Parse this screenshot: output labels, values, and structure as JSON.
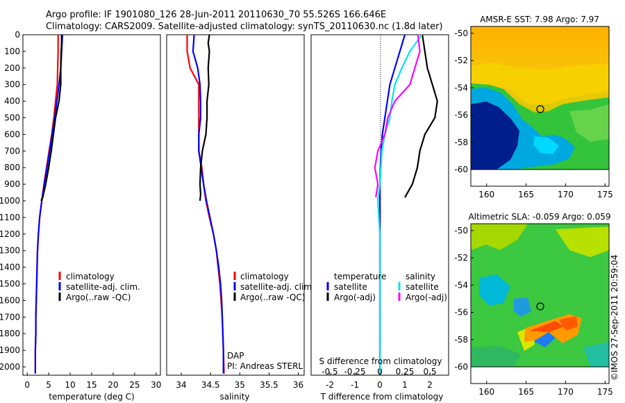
{
  "header": {
    "line1": "Argo profile: IF 1901080_126 28-Jun-2011 20110630_70 55.526S 166.646E",
    "line2": "Climatology: CARS2009. Satellite-adjusted climatology: synTS_20110630.nc (1.8d later)"
  },
  "colors": {
    "climatology": "#ff0000",
    "satellite": "#0000ff",
    "argo": "#000000",
    "salinity_sat": "#00e5ee",
    "salinity_argo": "#ff00ff"
  },
  "depth_ticks": [
    "0",
    "100",
    "200",
    "300",
    "400",
    "500",
    "600",
    "700",
    "800",
    "900",
    "1000",
    "1100",
    "1200",
    "1300",
    "1400",
    "1500",
    "1600",
    "1700",
    "1800",
    "1900",
    "2000"
  ],
  "chart_data": [
    {
      "type": "line",
      "xlabel": "temperature (deg C)",
      "xlim": [
        -1,
        31
      ],
      "ylim": [
        2050,
        0
      ],
      "xticks": [
        "0",
        "5",
        "10",
        "15",
        "20",
        "25",
        "30"
      ],
      "legend": [
        "climatology",
        "satellite-adj. clim.",
        "Argo(..raw -QC)"
      ],
      "series": [
        {
          "name": "climatology",
          "points": [
            [
              7.2,
              0
            ],
            [
              7.2,
              100
            ],
            [
              7.1,
              200
            ],
            [
              7.0,
              300
            ],
            [
              6.6,
              400
            ],
            [
              6.2,
              500
            ],
            [
              5.7,
              600
            ],
            [
              5.1,
              700
            ],
            [
              4.5,
              800
            ],
            [
              3.9,
              900
            ],
            [
              3.4,
              1000
            ],
            [
              2.9,
              1100
            ],
            [
              2.6,
              1200
            ],
            [
              2.4,
              1300
            ],
            [
              2.3,
              1400
            ],
            [
              2.2,
              1500
            ],
            [
              2.1,
              1600
            ],
            [
              2.0,
              1700
            ],
            [
              2.0,
              1800
            ],
            [
              1.9,
              1900
            ],
            [
              1.9,
              2040
            ]
          ]
        },
        {
          "name": "satellite-adj. clim.",
          "points": [
            [
              8.2,
              0
            ],
            [
              8.0,
              100
            ],
            [
              7.8,
              200
            ],
            [
              7.4,
              300
            ],
            [
              6.9,
              400
            ],
            [
              6.4,
              500
            ],
            [
              5.8,
              600
            ],
            [
              5.2,
              700
            ],
            [
              4.6,
              800
            ],
            [
              4.0,
              900
            ],
            [
              3.4,
              1000
            ],
            [
              2.9,
              1100
            ],
            [
              2.6,
              1200
            ],
            [
              2.4,
              1300
            ],
            [
              2.3,
              1400
            ],
            [
              2.2,
              1500
            ],
            [
              2.1,
              1600
            ],
            [
              2.0,
              1700
            ],
            [
              2.0,
              1800
            ],
            [
              1.9,
              1900
            ],
            [
              1.9,
              2040
            ]
          ]
        },
        {
          "name": "Argo(..raw -QC)",
          "points": [
            [
              8.0,
              0
            ],
            [
              8.0,
              50
            ],
            [
              7.9,
              100
            ],
            [
              7.8,
              200
            ],
            [
              7.8,
              300
            ],
            [
              7.6,
              350
            ],
            [
              7.4,
              400
            ],
            [
              7.0,
              450
            ],
            [
              6.6,
              500
            ],
            [
              6.1,
              600
            ],
            [
              5.6,
              700
            ],
            [
              5.0,
              800
            ],
            [
              4.3,
              900
            ],
            [
              3.6,
              980
            ],
            [
              3.2,
              1000
            ]
          ]
        }
      ]
    },
    {
      "type": "line",
      "xlabel": "salinity",
      "xlim": [
        33.75,
        36.1
      ],
      "ylim": [
        2050,
        0
      ],
      "xticks": [
        "34",
        "34.5",
        "35",
        "35.5",
        "36"
      ],
      "legend": [
        "climatology",
        "satellite-adj. clim.",
        "Argo(..raw -QC)"
      ],
      "annotations": [
        "DAP",
        "PI: Andreas STERL"
      ],
      "series": [
        {
          "name": "climatology",
          "points": [
            [
              34.1,
              0
            ],
            [
              34.1,
              100
            ],
            [
              34.15,
              200
            ],
            [
              34.3,
              300
            ],
            [
              34.3,
              400
            ],
            [
              34.3,
              500
            ],
            [
              34.3,
              600
            ],
            [
              34.3,
              700
            ],
            [
              34.35,
              800
            ],
            [
              34.38,
              900
            ],
            [
              34.42,
              1000
            ],
            [
              34.48,
              1100
            ],
            [
              34.55,
              1200
            ],
            [
              34.6,
              1300
            ],
            [
              34.63,
              1400
            ],
            [
              34.66,
              1500
            ],
            [
              34.68,
              1600
            ],
            [
              34.7,
              1700
            ],
            [
              34.71,
              1800
            ],
            [
              34.72,
              1900
            ],
            [
              34.73,
              2040
            ]
          ]
        },
        {
          "name": "satellite-adj. clim.",
          "points": [
            [
              34.22,
              0
            ],
            [
              34.2,
              100
            ],
            [
              34.28,
              200
            ],
            [
              34.32,
              300
            ],
            [
              34.33,
              400
            ],
            [
              34.33,
              500
            ],
            [
              34.3,
              600
            ],
            [
              34.3,
              700
            ],
            [
              34.34,
              800
            ],
            [
              34.38,
              900
            ],
            [
              34.43,
              1000
            ],
            [
              34.49,
              1100
            ],
            [
              34.55,
              1200
            ],
            [
              34.6,
              1300
            ],
            [
              34.64,
              1400
            ],
            [
              34.67,
              1500
            ],
            [
              34.69,
              1600
            ],
            [
              34.7,
              1700
            ],
            [
              34.71,
              1800
            ],
            [
              34.72,
              1900
            ],
            [
              34.72,
              2040
            ]
          ]
        },
        {
          "name": "Argo(..raw -QC)",
          "points": [
            [
              34.48,
              0
            ],
            [
              34.46,
              50
            ],
            [
              34.48,
              100
            ],
            [
              34.46,
              200
            ],
            [
              34.47,
              300
            ],
            [
              34.44,
              400
            ],
            [
              34.44,
              500
            ],
            [
              34.42,
              600
            ],
            [
              34.36,
              700
            ],
            [
              34.33,
              800
            ],
            [
              34.32,
              900
            ],
            [
              34.33,
              960
            ],
            [
              34.32,
              1000
            ]
          ]
        }
      ]
    },
    {
      "type": "line",
      "xlabel": "T difference from climatology",
      "xlabel2": "S difference from climatology",
      "xlim": [
        -2.75,
        2.75
      ],
      "ylim": [
        2050,
        0
      ],
      "xticks": [
        "-2",
        "-1",
        "0",
        "1",
        "2"
      ],
      "xticks2": [
        "-0.5",
        "-0.25",
        "0",
        "0.25",
        "0.5"
      ],
      "legend_temperature": [
        "temperature",
        "satellite",
        "Argo(-adj)"
      ],
      "legend_salinity": [
        "salinity",
        "satellite",
        "Argo(-adj)"
      ],
      "series": [
        {
          "name": "temperature satellite",
          "points": [
            [
              1.0,
              0
            ],
            [
              0.8,
              100
            ],
            [
              0.6,
              200
            ],
            [
              0.4,
              300
            ],
            [
              0.3,
              400
            ],
            [
              0.2,
              500
            ],
            [
              0.1,
              600
            ],
            [
              0.05,
              700
            ],
            [
              0.02,
              800
            ],
            [
              0.0,
              900
            ],
            [
              0.0,
              1000
            ],
            [
              0.0,
              1200
            ],
            [
              0.0,
              1500
            ],
            [
              0.0,
              1800
            ],
            [
              0.0,
              2000
            ],
            [
              0.0,
              2040
            ]
          ]
        },
        {
          "name": "temperature Argo(-adj)",
          "points": [
            [
              1.7,
              0
            ],
            [
              1.8,
              100
            ],
            [
              1.9,
              200
            ],
            [
              2.1,
              300
            ],
            [
              2.3,
              400
            ],
            [
              2.2,
              500
            ],
            [
              1.8,
              600
            ],
            [
              1.6,
              700
            ],
            [
              1.5,
              800
            ],
            [
              1.3,
              900
            ],
            [
              1.0,
              980
            ]
          ]
        },
        {
          "name": "salinity satellite",
          "points": [
            [
              0.42,
              0
            ],
            [
              0.3,
              100
            ],
            [
              0.22,
              200
            ],
            [
              0.15,
              300
            ],
            [
              0.12,
              400
            ],
            [
              0.1,
              500
            ],
            [
              0.05,
              600
            ],
            [
              0.02,
              700
            ],
            [
              0.01,
              800
            ],
            [
              0.0,
              900
            ],
            [
              -0.02,
              1000
            ],
            [
              0.0,
              1200
            ],
            [
              0.0,
              1500
            ],
            [
              0.0,
              2040
            ]
          ]
        },
        {
          "name": "salinity Argo(-adj)",
          "points": [
            [
              0.38,
              0
            ],
            [
              0.4,
              100
            ],
            [
              0.35,
              200
            ],
            [
              0.3,
              300
            ],
            [
              0.15,
              400
            ],
            [
              0.08,
              500
            ],
            [
              0.05,
              600
            ],
            [
              -0.02,
              700
            ],
            [
              -0.05,
              800
            ],
            [
              -0.02,
              900
            ],
            [
              -0.04,
              980
            ]
          ]
        }
      ]
    },
    {
      "type": "heatmap",
      "title": "AMSR-E SST: 7.98 Argo: 7.97",
      "xlim": [
        158,
        175.5
      ],
      "ylim": [
        -60,
        -49.5
      ],
      "xticks": [
        "160",
        "165",
        "170",
        "175"
      ],
      "yticks": [
        "-50",
        "-52",
        "-54",
        "-56",
        "-58",
        "-60"
      ],
      "marker": {
        "lon": 166.646,
        "lat": -55.526
      }
    },
    {
      "type": "heatmap",
      "title": "Altimetric SLA: -0.059 Argo: 0.059",
      "xlim": [
        158,
        175.5
      ],
      "ylim": [
        -60,
        -49.5
      ],
      "xticks": [
        "160",
        "165",
        "170",
        "175"
      ],
      "yticks": [
        "-50",
        "-52",
        "-54",
        "-56",
        "-58",
        "-60"
      ],
      "marker": {
        "lon": 166.646,
        "lat": -55.526
      }
    }
  ],
  "credit": "©IMOS 27-Sep-2011 20:59:04"
}
